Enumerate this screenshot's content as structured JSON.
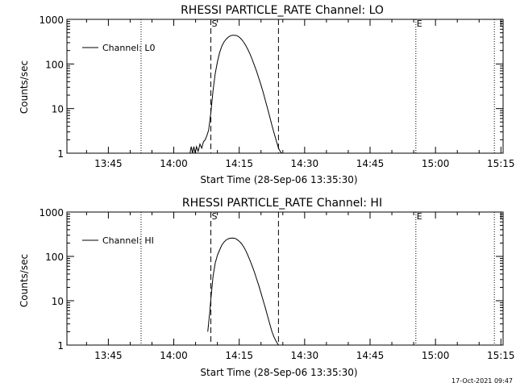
{
  "chart_data": [
    {
      "type": "line",
      "title": "RHESSI PARTICLE_RATE Channel: LO",
      "xlabel": "Start Time (28-Sep-06 13:35:30)",
      "ylabel": "Counts/sec",
      "y_scale": "log",
      "ylim": [
        1,
        1000
      ],
      "xlim_minutes": [
        35.5,
        135.5
      ],
      "x_ticks": [
        {
          "label": "13:45",
          "minutes": 45
        },
        {
          "label": "14:00",
          "minutes": 60
        },
        {
          "label": "14:15",
          "minutes": 75
        },
        {
          "label": "14:30",
          "minutes": 90
        },
        {
          "label": "14:45",
          "minutes": 105
        },
        {
          "label": "15:00",
          "minutes": 120
        },
        {
          "label": "15:15",
          "minutes": 135
        }
      ],
      "y_ticks": [
        {
          "label": "1",
          "value": 1
        },
        {
          "label": "10",
          "value": 10
        },
        {
          "label": "100",
          "value": 100
        },
        {
          "label": "1000",
          "value": 1000
        }
      ],
      "legend": {
        "entry": "Channel: L0",
        "placement": "top-left"
      },
      "markers": {
        "dashed": [
          {
            "label": "S",
            "minutes": 68.5
          },
          {
            "label": "",
            "minutes": 84.0
          }
        ],
        "dotted": [
          {
            "label": "",
            "minutes": 52.5
          },
          {
            "label": "E",
            "minutes": 115.5
          },
          {
            "label": "",
            "minutes": 133.5
          }
        ]
      },
      "series": [
        {
          "x": [
            63.7,
            64.0,
            64.3,
            64.6,
            64.9,
            65.2,
            65.6,
            66.0,
            66.4,
            66.8,
            67.2,
            67.6,
            68.0,
            68.5,
            69.0,
            69.5,
            70.0,
            70.5,
            71.0,
            71.5,
            72.0,
            72.5,
            73.0,
            73.5,
            74.0,
            74.5,
            75.0,
            75.5,
            76.0,
            76.5,
            77.0,
            77.5,
            78.0,
            78.5,
            79.0,
            79.5,
            80.0,
            80.5,
            81.0,
            81.5,
            82.0,
            82.5,
            83.0,
            83.5,
            84.0,
            84.4,
            84.7
          ],
          "y": [
            1.0,
            1.4,
            1.0,
            1.4,
            1.0,
            1.4,
            1.1,
            1.6,
            1.3,
            1.8,
            2.0,
            2.5,
            3.3,
            8.0,
            25,
            60,
            110,
            180,
            250,
            310,
            360,
            400,
            430,
            440,
            440,
            430,
            400,
            360,
            310,
            260,
            210,
            165,
            125,
            92,
            68,
            48,
            34,
            23,
            15,
            10,
            6.5,
            4.2,
            2.8,
            1.9,
            1.3,
            1.1,
            1.0
          ]
        }
      ]
    },
    {
      "type": "line",
      "title": "RHESSI PARTICLE_RATE Channel: HI",
      "xlabel": "Start Time (28-Sep-06 13:35:30)",
      "ylabel": "Counts/sec",
      "y_scale": "log",
      "ylim": [
        1,
        1000
      ],
      "xlim_minutes": [
        35.5,
        135.5
      ],
      "x_ticks": [
        {
          "label": "13:45",
          "minutes": 45
        },
        {
          "label": "14:00",
          "minutes": 60
        },
        {
          "label": "14:15",
          "minutes": 75
        },
        {
          "label": "14:30",
          "minutes": 90
        },
        {
          "label": "14:45",
          "minutes": 105
        },
        {
          "label": "15:00",
          "minutes": 120
        },
        {
          "label": "15:15",
          "minutes": 135
        }
      ],
      "y_ticks": [
        {
          "label": "1",
          "value": 1
        },
        {
          "label": "10",
          "value": 10
        },
        {
          "label": "100",
          "value": 100
        },
        {
          "label": "1000",
          "value": 1000
        }
      ],
      "legend": {
        "entry": "Channel: HI",
        "placement": "top-left"
      },
      "markers": {
        "dashed": [
          {
            "label": "S",
            "minutes": 68.5
          },
          {
            "label": "",
            "minutes": 84.0
          }
        ],
        "dotted": [
          {
            "label": "",
            "minutes": 52.5
          },
          {
            "label": "E",
            "minutes": 115.5
          },
          {
            "label": "",
            "minutes": 133.5
          }
        ]
      },
      "series": [
        {
          "x": [
            67.8,
            68.2,
            68.6,
            69.0,
            69.5,
            70.0,
            70.5,
            71.0,
            71.5,
            72.0,
            72.5,
            73.0,
            73.5,
            74.0,
            74.5,
            75.0,
            75.5,
            76.0,
            76.5,
            77.0,
            77.5,
            78.0,
            78.5,
            79.0,
            79.5,
            80.0,
            80.5,
            81.0,
            81.5,
            82.0,
            82.5,
            83.0,
            83.5,
            84.0
          ],
          "y": [
            2.0,
            5.0,
            14,
            35,
            70,
            105,
            140,
            180,
            210,
            235,
            250,
            258,
            260,
            255,
            240,
            220,
            195,
            165,
            135,
            105,
            80,
            60,
            44,
            31,
            22,
            15,
            10,
            6.8,
            4.5,
            3.0,
            2.0,
            1.5,
            1.2,
            1.0
          ]
        }
      ]
    }
  ],
  "footer": {
    "timestamp": "17-Oct-2021 09:47"
  }
}
